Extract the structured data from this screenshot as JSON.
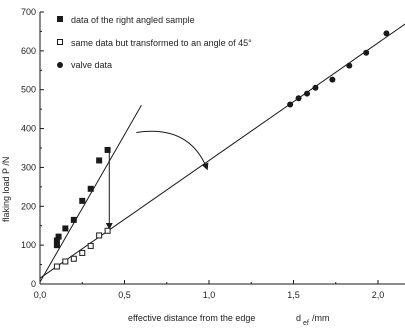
{
  "chart_data": {
    "type": "scatter",
    "xlabel": "effective distance from the edge",
    "xlabel_symbol": "d",
    "xlabel_subscript": "ef",
    "xlabel_unit": "/mm",
    "ylabel": "flaking load   P  /N",
    "xlim": [
      0,
      2.2
    ],
    "ylim": [
      0,
      700
    ],
    "x_ticks": [
      "0,0",
      "0,5",
      "1,0",
      "1,5",
      "2,0"
    ],
    "y_ticks": [
      "0",
      "100",
      "200",
      "300",
      "400",
      "500",
      "600",
      "700"
    ],
    "legend_position": "top-left",
    "series": [
      {
        "name": "data of the right angled sample",
        "marker": "filled-square",
        "color": "#1a1a1a",
        "x": [
          0.1,
          0.1,
          0.11,
          0.15,
          0.2,
          0.25,
          0.3,
          0.35,
          0.4
        ],
        "y": [
          100,
          112,
          122,
          143,
          165,
          214,
          245,
          318,
          345
        ]
      },
      {
        "name": "same data but transformed to an angle of 45°",
        "marker": "open-square",
        "color": "#1a1a1a",
        "x": [
          0.1,
          0.15,
          0.2,
          0.25,
          0.3,
          0.35,
          0.4
        ],
        "y": [
          45,
          58,
          65,
          80,
          98,
          125,
          137
        ]
      },
      {
        "name": "valve data",
        "marker": "filled-circle",
        "color": "#1a1a1a",
        "x": [
          1.48,
          1.53,
          1.58,
          1.63,
          1.73,
          1.83,
          1.93,
          2.05
        ],
        "y": [
          462,
          478,
          490,
          505,
          526,
          562,
          595,
          645
        ]
      }
    ],
    "fit_lines": [
      {
        "x": [
          0.0,
          0.6
        ],
        "y": [
          5,
          460
        ]
      },
      {
        "x": [
          0.0,
          2.18
        ],
        "y": [
          15,
          675
        ]
      }
    ],
    "annotations": [
      {
        "type": "vertical-arrow",
        "x": 0.41,
        "y_from": 340,
        "y_to": 142
      },
      {
        "type": "curved-arrow",
        "from": [
          0.57,
          390
        ],
        "to": [
          0.99,
          295
        ]
      }
    ]
  }
}
